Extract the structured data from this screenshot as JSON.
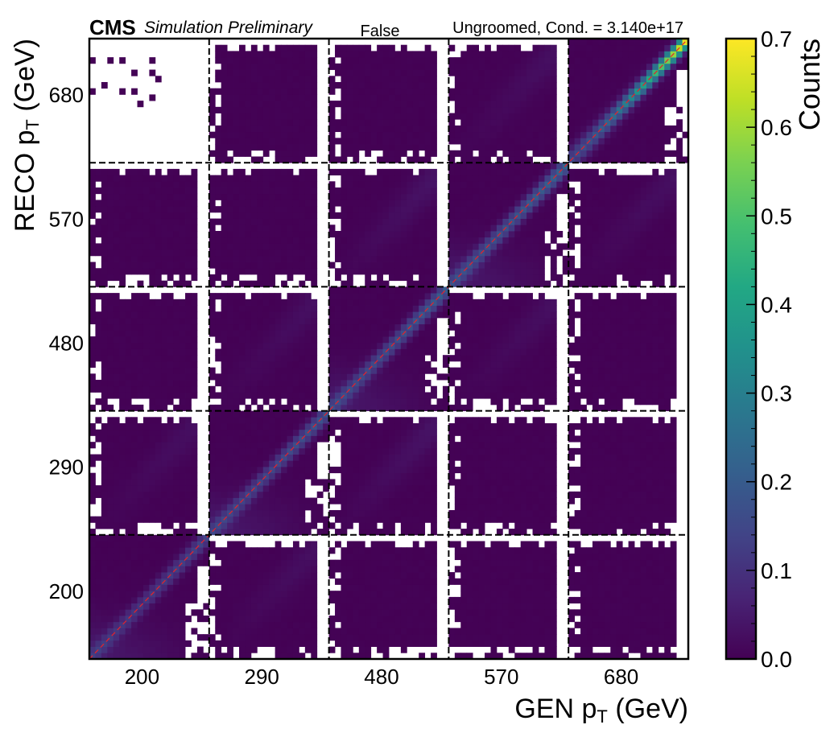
{
  "chart_data": {
    "type": "heatmap",
    "header": {
      "brand": "CMS",
      "subtitle": "Simulation Preliminary",
      "center_label": "False",
      "right_label": "Ungroomed, Cond. = 3.140e+17"
    },
    "xlabel_main": "GEN p",
    "xlabel_sub": "T",
    "xlabel_unit": " (GeV)",
    "ylabel_main": "RECO p",
    "ylabel_sub": "T",
    "ylabel_unit": " (GeV)",
    "x_blocks": [
      "200",
      "290",
      "480",
      "570",
      "680"
    ],
    "y_blocks": [
      "200",
      "290",
      "480",
      "570",
      "680"
    ],
    "bins_per_block": 20,
    "colorbar": {
      "label": "Counts",
      "min": 0.0,
      "max": 0.7,
      "ticks": [
        "0.0",
        "0.1",
        "0.2",
        "0.3",
        "0.4",
        "0.5",
        "0.6",
        "0.7"
      ],
      "colormap": "viridis"
    },
    "block_peaks": [
      [
        0.14,
        0.03,
        0.0,
        0.0,
        0.0
      ],
      [
        0.03,
        0.18,
        0.04,
        0.0,
        0.0
      ],
      [
        0.0,
        0.03,
        0.2,
        0.03,
        0.0
      ],
      [
        0.0,
        0.0,
        0.04,
        0.22,
        0.03
      ],
      [
        0.0,
        0.0,
        0.0,
        0.03,
        0.7
      ]
    ],
    "diagonal_line": {
      "color": "#e8202a",
      "style": "dashed"
    },
    "grid": "dashed block separators"
  }
}
